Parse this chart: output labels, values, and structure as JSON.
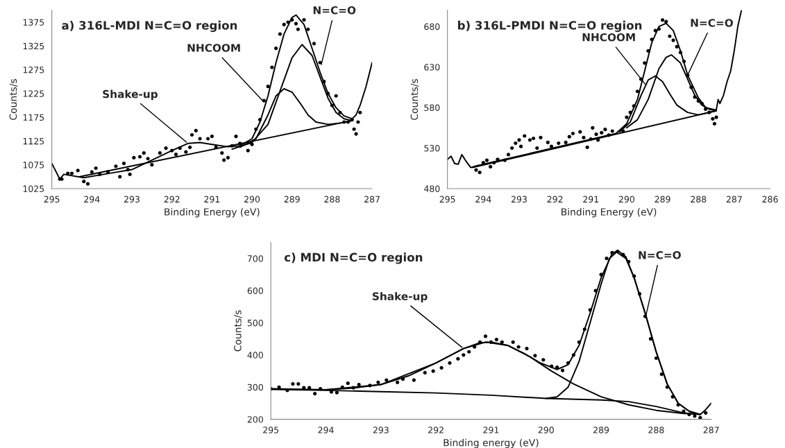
{
  "chart_data": [
    {
      "type": "line",
      "title": "a) 316L-MDI N=C=O region",
      "xlabel": "Binding Energy (eV)",
      "ylabel": "Counts/s",
      "xlim": [
        295,
        287
      ],
      "ylim": [
        1025,
        1400
      ],
      "xticks": [
        295,
        294,
        293,
        292,
        291,
        290,
        289,
        288,
        287
      ],
      "yticks": [
        1025,
        1075,
        1125,
        1175,
        1225,
        1275,
        1325,
        1375
      ],
      "grid": false,
      "legend": false,
      "series": [
        {
          "type": "scatter",
          "marker": "circle",
          "color": "#000000",
          "x": [
            294.8,
            294.75,
            294.6,
            294.5,
            294.35,
            294.2,
            294.1,
            294.0,
            293.9,
            293.8,
            293.6,
            293.4,
            293.3,
            293.2,
            293.1,
            293.05,
            292.95,
            292.8,
            292.7,
            292.6,
            292.5,
            292.3,
            292.15,
            292.0,
            291.9,
            291.8,
            291.65,
            291.55,
            291.5,
            291.4,
            291.3,
            291.1,
            291.0,
            290.9,
            290.75,
            290.7,
            290.6,
            290.5,
            290.4,
            290.3,
            290.1,
            290.0,
            289.9,
            289.8,
            289.7,
            289.6,
            289.5,
            289.4,
            289.3,
            289.2,
            289.1,
            289.0,
            288.9,
            288.85,
            288.7,
            288.6,
            288.45,
            288.3,
            288.2,
            288.1,
            288.0,
            287.9,
            287.8,
            287.7,
            287.6,
            287.5,
            287.45,
            287.4,
            287.35,
            287.3
          ],
          "values": [
            1045,
            1045,
            1057,
            1057,
            1063,
            1040,
            1035,
            1060,
            1068,
            1055,
            1060,
            1072,
            1050,
            1078,
            1065,
            1055,
            1090,
            1092,
            1100,
            1088,
            1075,
            1100,
            1110,
            1105,
            1097,
            1110,
            1102,
            1112,
            1138,
            1147,
            1130,
            1130,
            1135,
            1112,
            1100,
            1085,
            1090,
            1115,
            1135,
            1120,
            1105,
            1118,
            1150,
            1170,
            1210,
            1240,
            1280,
            1320,
            1350,
            1370,
            1375,
            1380,
            1372,
            1360,
            1380,
            1360,
            1330,
            1290,
            1250,
            1225,
            1200,
            1220,
            1185,
            1165,
            1165,
            1170,
            1150,
            1140,
            1165,
            1185
          ]
        },
        {
          "type": "line",
          "color": "#000000",
          "x": [
            295,
            294.8,
            294.7,
            294.2,
            293.5,
            293,
            292.5,
            292,
            291.6,
            291.3,
            291,
            290.6,
            290.3,
            290,
            289.8,
            289.6,
            289.4,
            289.2,
            289.0,
            288.9,
            288.7,
            288.5,
            288.3,
            288.1,
            287.9,
            287.7,
            287.5,
            287.4,
            287.3,
            287.15,
            287.0
          ],
          "values": [
            1078,
            1045,
            1055,
            1048,
            1058,
            1065,
            1085,
            1105,
            1120,
            1122,
            1118,
            1113,
            1115,
            1130,
            1165,
            1220,
            1290,
            1350,
            1385,
            1390,
            1370,
            1320,
            1270,
            1225,
            1195,
            1178,
            1172,
            1180,
            1200,
            1240,
            1290
          ]
        },
        {
          "type": "line",
          "color": "#000000",
          "x": [
            294.3,
            287.5
          ],
          "values": [
            1050,
            1168
          ]
        },
        {
          "type": "line",
          "color": "#000000",
          "x": [
            290.3,
            289.9,
            289.6,
            289.4,
            289.2,
            289.0,
            288.8,
            288.6,
            288.4,
            288.1,
            287.8,
            287.5
          ],
          "values": [
            1112,
            1130,
            1180,
            1220,
            1235,
            1228,
            1205,
            1180,
            1165,
            1160,
            1163,
            1168
          ]
        },
        {
          "type": "line",
          "color": "#000000",
          "x": [
            290.5,
            290.0,
            289.6,
            289.3,
            289.0,
            288.75,
            288.5,
            288.3,
            288.1,
            287.9,
            287.7,
            287.5
          ],
          "values": [
            1108,
            1122,
            1160,
            1230,
            1300,
            1328,
            1305,
            1260,
            1215,
            1185,
            1172,
            1168
          ]
        }
      ],
      "annotations": [
        {
          "text": "Shake-up",
          "x": 291.6,
          "y": 1120
        },
        {
          "text": "NHCOOM",
          "x": 289.7,
          "y": 1207
        },
        {
          "text": "N=C=O",
          "x": 288.28,
          "y": 1282
        }
      ]
    },
    {
      "type": "line",
      "title": "b) 316L-PMDI N=C=O region",
      "xlabel": "Binding Energy (eV)",
      "ylabel": "Counts/s",
      "xlim": [
        295,
        286
      ],
      "ylim": [
        480,
        700
      ],
      "xticks": [
        295,
        294,
        293,
        292,
        291,
        290,
        289,
        288,
        287,
        286
      ],
      "yticks": [
        480,
        530,
        580,
        630,
        680
      ],
      "grid": false,
      "legend": false,
      "series": [
        {
          "type": "scatter",
          "marker": "circle",
          "color": "#000000",
          "x": [
            294.2,
            294.1,
            294.0,
            293.9,
            293.8,
            293.7,
            293.6,
            293.4,
            293.3,
            293.2,
            293.1,
            293.0,
            292.95,
            292.85,
            292.7,
            292.6,
            292.5,
            292.4,
            292.2,
            292.1,
            291.9,
            291.7,
            291.6,
            291.5,
            291.3,
            291.2,
            291.1,
            291.0,
            290.95,
            290.85,
            290.8,
            290.7,
            290.6,
            290.5,
            290.4,
            290.1,
            290.0,
            289.9,
            289.8,
            289.7,
            289.6,
            289.5,
            289.4,
            289.3,
            289.2,
            289.1,
            289.0,
            288.9,
            288.8,
            288.7,
            288.6,
            288.5,
            288.4,
            288.3,
            288.2,
            288.1,
            288.0,
            287.9,
            287.8,
            287.7,
            287.6,
            287.55,
            287.5
          ],
          "values": [
            503,
            500,
            512,
            515,
            507,
            512,
            516,
            515,
            522,
            530,
            536,
            540,
            532,
            545,
            540,
            542,
            530,
            543,
            537,
            532,
            536,
            537,
            544,
            548,
            550,
            543,
            531,
            541,
            555,
            547,
            540,
            549,
            553,
            546,
            551,
            551,
            568,
            574,
            582,
            600,
            615,
            635,
            650,
            664,
            675,
            677,
            688,
            686,
            668,
            663,
            655,
            648,
            637,
            620,
            605,
            593,
            588,
            585,
            578,
            574,
            566,
            560,
            568
          ]
        },
        {
          "type": "line",
          "color": "#000000",
          "x": [
            295,
            294.9,
            294.8,
            294.7,
            294.6,
            294.5,
            294.35,
            294.2,
            290.3,
            290.0,
            289.7,
            289.5,
            289.3,
            289.1,
            288.9,
            288.7,
            288.5,
            288.3,
            288.0,
            287.8,
            287.5,
            287.45,
            287.4,
            287.3,
            287.2,
            287.1,
            287.0,
            286.9,
            286.8
          ],
          "values": [
            516,
            520,
            511,
            510,
            522,
            515,
            506,
            508,
            548,
            560,
            590,
            625,
            660,
            680,
            684,
            675,
            650,
            620,
            592,
            580,
            577,
            590,
            585,
            595,
            612,
            625,
            650,
            680,
            700
          ]
        },
        {
          "type": "line",
          "color": "#000000",
          "x": [
            294.3,
            287.5
          ],
          "values": [
            506,
            576
          ]
        },
        {
          "type": "line",
          "color": "#000000",
          "x": [
            290.2,
            289.9,
            289.6,
            289.4,
            289.2,
            289.0,
            288.8,
            288.6,
            288.3,
            288.0,
            287.5
          ],
          "values": [
            550,
            562,
            595,
            614,
            619,
            612,
            597,
            583,
            574,
            571,
            576
          ]
        },
        {
          "type": "line",
          "color": "#000000",
          "x": [
            290.0,
            289.7,
            289.4,
            289.1,
            288.9,
            288.75,
            288.5,
            288.3,
            288.1,
            287.9,
            287.7,
            287.5
          ],
          "values": [
            555,
            565,
            590,
            628,
            642,
            645,
            635,
            615,
            595,
            583,
            578,
            576
          ]
        }
      ],
      "annotations": [
        {
          "text": "NHCOOM",
          "x": 289.45,
          "y": 607
        },
        {
          "text": "N=C=O",
          "x": 288.3,
          "y": 620
        }
      ]
    },
    {
      "type": "line",
      "title": "c) MDI N=C=O region",
      "xlabel": "Binding energy (eV)",
      "ylabel": "Counts/s",
      "xlim": [
        295,
        287
      ],
      "ylim": [
        200,
        750
      ],
      "xticks": [
        295,
        294,
        293,
        292,
        291,
        290,
        289,
        288,
        287
      ],
      "yticks": [
        200,
        300,
        400,
        500,
        600,
        700
      ],
      "grid": false,
      "legend": false,
      "series": [
        {
          "type": "scatter",
          "marker": "circle",
          "color": "#000000",
          "x": [
            295,
            294.85,
            294.7,
            294.6,
            294.5,
            294.4,
            294.3,
            294.2,
            294.1,
            293.9,
            293.8,
            293.7,
            293.6,
            293.5,
            293.4,
            293.2,
            293.05,
            292.9,
            292.7,
            292.6,
            292.4,
            292.2,
            292.05,
            291.9,
            291.75,
            291.6,
            291.5,
            291.4,
            291.3,
            291.2,
            291.1,
            291.0,
            290.9,
            290.8,
            290.6,
            290.5,
            290.35,
            290.2,
            290.05,
            289.9,
            289.8,
            289.7,
            289.6,
            289.5,
            289.4,
            289.3,
            289.2,
            289.1,
            289.0,
            288.9,
            288.8,
            288.7,
            288.6,
            288.5,
            288.4,
            288.3,
            288.2,
            288.1,
            288.0,
            287.9,
            287.8,
            287.7,
            287.6,
            287.5,
            287.4,
            287.3,
            287.2,
            287.1
          ],
          "values": [
            295,
            300,
            290,
            310,
            310,
            298,
            298,
            280,
            295,
            285,
            283,
            300,
            312,
            298,
            308,
            305,
            315,
            322,
            315,
            325,
            322,
            345,
            350,
            360,
            375,
            388,
            400,
            410,
            425,
            440,
            458,
            440,
            448,
            440,
            440,
            425,
            420,
            398,
            385,
            365,
            362,
            352,
            375,
            400,
            440,
            480,
            540,
            600,
            650,
            700,
            718,
            722,
            712,
            690,
            645,
            590,
            520,
            450,
            390,
            340,
            300,
            270,
            245,
            225,
            215,
            210,
            205,
            220
          ]
        },
        {
          "type": "line",
          "color": "#000000",
          "x": [
            295,
            294,
            293.5,
            293,
            292.5,
            292,
            291.5,
            291.2,
            291,
            290.7,
            290.4,
            290.1,
            289.8,
            289.6,
            289.4,
            289.2,
            289.0,
            288.8,
            288.7,
            288.55,
            288.4,
            288.2,
            288.0,
            287.8,
            287.6,
            287.4,
            287.2,
            287.1,
            287.0
          ],
          "values": [
            295,
            292,
            297,
            308,
            335,
            375,
            420,
            438,
            440,
            430,
            405,
            375,
            355,
            370,
            430,
            530,
            640,
            715,
            725,
            705,
            640,
            530,
            410,
            310,
            250,
            225,
            215,
            230,
            250
          ]
        },
        {
          "type": "line",
          "color": "#000000",
          "x": [
            295,
            294,
            293,
            292,
            291,
            290,
            289,
            288.5,
            288,
            287.5,
            287.2
          ],
          "values": [
            293,
            290,
            286,
            282,
            275,
            265,
            260,
            255,
            240,
            220,
            215
          ]
        },
        {
          "color": "#000000",
          "x": [
            294.5,
            294,
            293,
            292,
            291.5,
            291.1,
            290.7,
            290.3,
            289.9,
            289.5,
            289.0,
            288.5,
            288.0,
            287.5,
            287.3
          ],
          "values": [
            292,
            292,
            308,
            375,
            420,
            440,
            430,
            395,
            350,
            310,
            270,
            245,
            228,
            218,
            217
          ]
        },
        {
          "type": "line",
          "color": "#000000",
          "x": [
            290.0,
            289.8,
            289.6,
            289.4,
            289.2,
            289.0,
            288.85,
            288.72,
            288.55,
            288.4,
            288.2,
            288.0,
            287.8,
            287.6,
            287.4,
            287.2
          ],
          "values": [
            265,
            270,
            300,
            380,
            500,
            620,
            700,
            720,
            700,
            640,
            530,
            410,
            310,
            250,
            225,
            215
          ]
        }
      ],
      "annotations": [
        {
          "text": "Shake-up",
          "x": 291.5,
          "y": 420
        },
        {
          "text": "N=C=O",
          "x": 288.2,
          "y": 512
        }
      ]
    }
  ]
}
